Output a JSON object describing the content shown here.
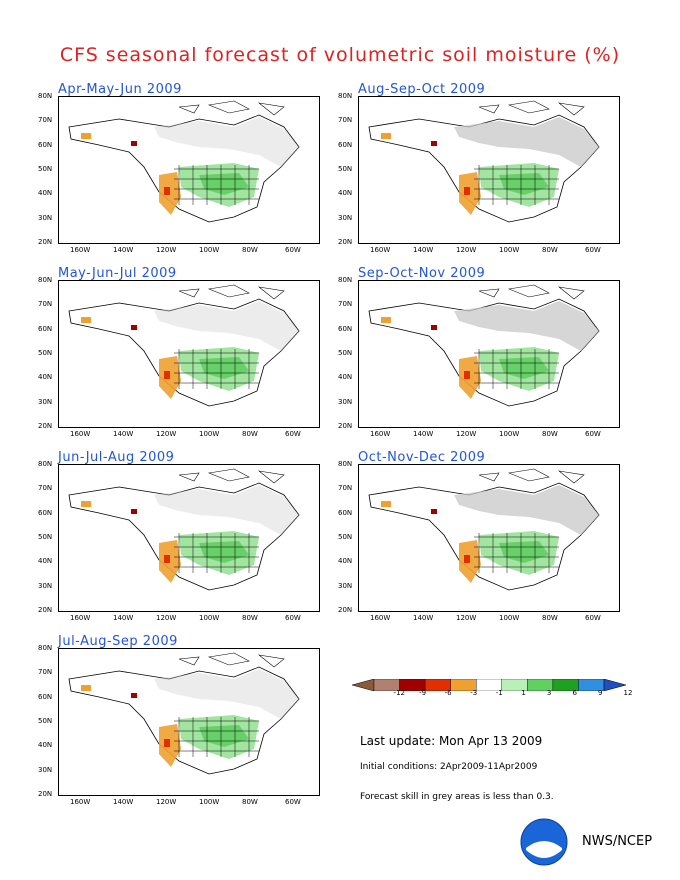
{
  "title": "CFS seasonal forecast of volumetric soil moisture (%)",
  "panels": [
    {
      "title": "Apr-May-Jun 2009"
    },
    {
      "title": "Aug-Sep-Oct 2009"
    },
    {
      "title": "May-Jun-Jul 2009"
    },
    {
      "title": "Sep-Oct-Nov 2009"
    },
    {
      "title": "Jun-Jul-Aug 2009"
    },
    {
      "title": "Oct-Nov-Dec 2009"
    },
    {
      "title": "Jul-Aug-Sep 2009"
    }
  ],
  "lat_labels": [
    "80N",
    "70N",
    "60N",
    "50N",
    "40N",
    "30N",
    "20N"
  ],
  "lon_labels": [
    "160W",
    "140W",
    "120W",
    "100W",
    "80W",
    "60W"
  ],
  "colorbar": {
    "ticks": [
      "-12",
      "-9",
      "-6",
      "-3",
      "-1",
      "1",
      "3",
      "6",
      "9",
      "12"
    ],
    "colors": [
      "#8b5a3c",
      "#b08070",
      "#a00000",
      "#e03000",
      "#f0a030",
      "#ffffff",
      "#b8f0b8",
      "#60d060",
      "#20a020",
      "#3090e0",
      "#2050c0"
    ]
  },
  "last_update": "Last update: Mon Apr 13 2009",
  "initial_conditions": "Initial conditions: 2Apr2009-11Apr2009",
  "skill_note": "Forecast skill in grey areas is less than 0.3.",
  "agency": "NWS/NCEP",
  "logo_text": "NOAA"
}
